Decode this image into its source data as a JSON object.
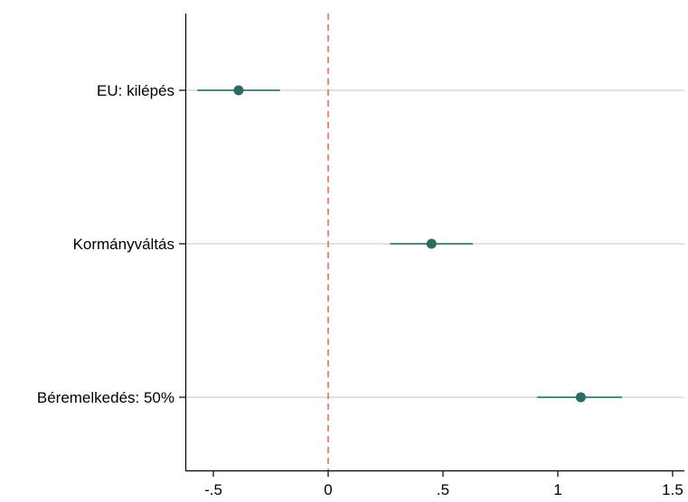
{
  "chart_data": {
    "type": "scatter",
    "subtype": "coefficient-plot",
    "title": "",
    "xlabel": "",
    "ylabel": "",
    "xlim": [
      -0.62,
      1.55
    ],
    "x_ticks": [
      {
        "value": -0.5,
        "label": "-.5"
      },
      {
        "value": 0,
        "label": "0"
      },
      {
        "value": 0.5,
        "label": ".5"
      },
      {
        "value": 1,
        "label": "1"
      },
      {
        "value": 1.5,
        "label": "1.5"
      }
    ],
    "categories": [
      "EU: kilépés",
      "Kormányváltás",
      "Béremelkedés: 50%"
    ],
    "estimates": [
      {
        "label": "EU: kilépés",
        "value": -0.39,
        "ci_low": -0.57,
        "ci_high": -0.21
      },
      {
        "label": "Kormányváltás",
        "value": 0.45,
        "ci_low": 0.27,
        "ci_high": 0.63
      },
      {
        "label": "Béremelkedés: 50%",
        "value": 1.1,
        "ci_low": 0.91,
        "ci_high": 1.28
      }
    ],
    "reference_line": {
      "value": 0,
      "color": "#e8493f",
      "style": "dashed"
    },
    "grid": "horizontal",
    "legend": "none",
    "colors": {
      "marker": "#2b6b63",
      "ci": "#4f8a82",
      "grid": "#e2e2e2",
      "axis": "#000000"
    }
  }
}
